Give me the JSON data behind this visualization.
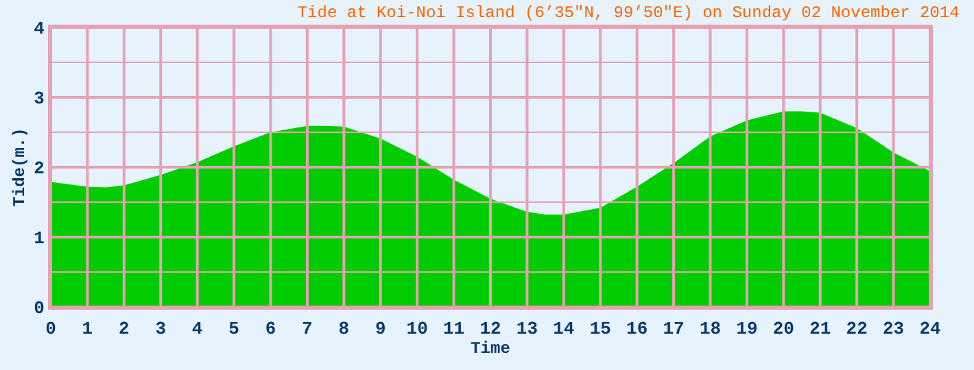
{
  "chart_data": {
    "type": "area",
    "title": "Tide at Koi-Noi Island (6’35\"N, 99’50\"E) on Sunday 02 November 2014",
    "xlabel": "Time",
    "ylabel": "Tide(m.)",
    "x": [
      0,
      1,
      1.5,
      2,
      3,
      4,
      5,
      6,
      7,
      7.5,
      8,
      9,
      10,
      11,
      12,
      13,
      13.5,
      14,
      15,
      16,
      17,
      18,
      19,
      20,
      20.5,
      21,
      22,
      23,
      24
    ],
    "series": [
      {
        "color": "#00cc00",
        "values": [
          1.79,
          1.72,
          1.71,
          1.74,
          1.89,
          2.07,
          2.3,
          2.5,
          2.59,
          2.59,
          2.58,
          2.41,
          2.15,
          1.82,
          1.55,
          1.36,
          1.32,
          1.32,
          1.42,
          1.72,
          2.06,
          2.44,
          2.67,
          2.8,
          2.8,
          2.78,
          2.56,
          2.21,
          1.94
        ]
      }
    ],
    "xlim": [
      0,
      24
    ],
    "xticks": [
      0,
      1,
      2,
      3,
      4,
      5,
      6,
      7,
      8,
      9,
      10,
      11,
      12,
      13,
      14,
      15,
      16,
      17,
      18,
      19,
      20,
      21,
      22,
      23,
      24
    ],
    "ylim": [
      0,
      4
    ],
    "yticks": [
      0,
      {
        "value": 0.5,
        "label": null
      },
      1,
      {
        "value": 1.5,
        "label": null
      },
      2,
      {
        "value": 2.5,
        "label": null
      },
      3,
      {
        "value": 3.5,
        "label": null
      },
      4
    ],
    "grid": true
  }
}
